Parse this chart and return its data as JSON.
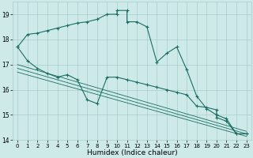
{
  "xlabel": "Humidex (Indice chaleur)",
  "bg_color": "#ceeae8",
  "grid_color": "#a8ccca",
  "line_color": "#1a6e64",
  "xlim": [
    -0.5,
    23.5
  ],
  "ylim": [
    14.0,
    19.5
  ],
  "yticks": [
    14,
    15,
    16,
    17,
    18,
    19
  ],
  "xticks": [
    0,
    1,
    2,
    3,
    4,
    5,
    6,
    7,
    8,
    9,
    10,
    11,
    12,
    13,
    14,
    15,
    16,
    17,
    18,
    19,
    20,
    21,
    22,
    23
  ],
  "curve1_x": [
    0,
    1,
    2,
    3,
    4,
    5,
    6,
    7,
    8,
    9,
    10,
    10,
    11,
    11,
    12,
    13,
    14,
    15,
    16,
    17,
    18,
    19,
    20,
    21,
    22,
    23
  ],
  "curve1_y": [
    17.7,
    18.2,
    18.25,
    18.35,
    18.45,
    18.55,
    18.65,
    18.7,
    18.8,
    19.0,
    19.0,
    19.15,
    19.15,
    18.7,
    18.7,
    18.5,
    17.1,
    17.45,
    17.7,
    16.8,
    15.75,
    15.25,
    15.0,
    14.85,
    14.25,
    14.25
  ],
  "curve2_x": [
    0,
    1,
    2,
    3,
    4,
    5,
    6,
    7,
    8,
    9,
    10,
    11,
    12,
    13,
    14,
    15,
    16,
    17,
    18,
    19,
    20,
    20,
    21,
    22,
    23
  ],
  "curve2_y": [
    17.7,
    17.15,
    16.85,
    16.65,
    16.5,
    16.6,
    16.4,
    15.6,
    15.45,
    16.5,
    16.5,
    16.4,
    16.3,
    16.2,
    16.1,
    16.0,
    15.9,
    15.8,
    15.35,
    15.3,
    15.2,
    14.9,
    14.75,
    14.25,
    14.25
  ],
  "lines": [
    {
      "x": [
        0,
        23
      ],
      "y": [
        17.0,
        14.35
      ]
    },
    {
      "x": [
        0,
        23
      ],
      "y": [
        16.85,
        14.25
      ]
    },
    {
      "x": [
        0,
        23
      ],
      "y": [
        16.7,
        14.15
      ]
    }
  ]
}
